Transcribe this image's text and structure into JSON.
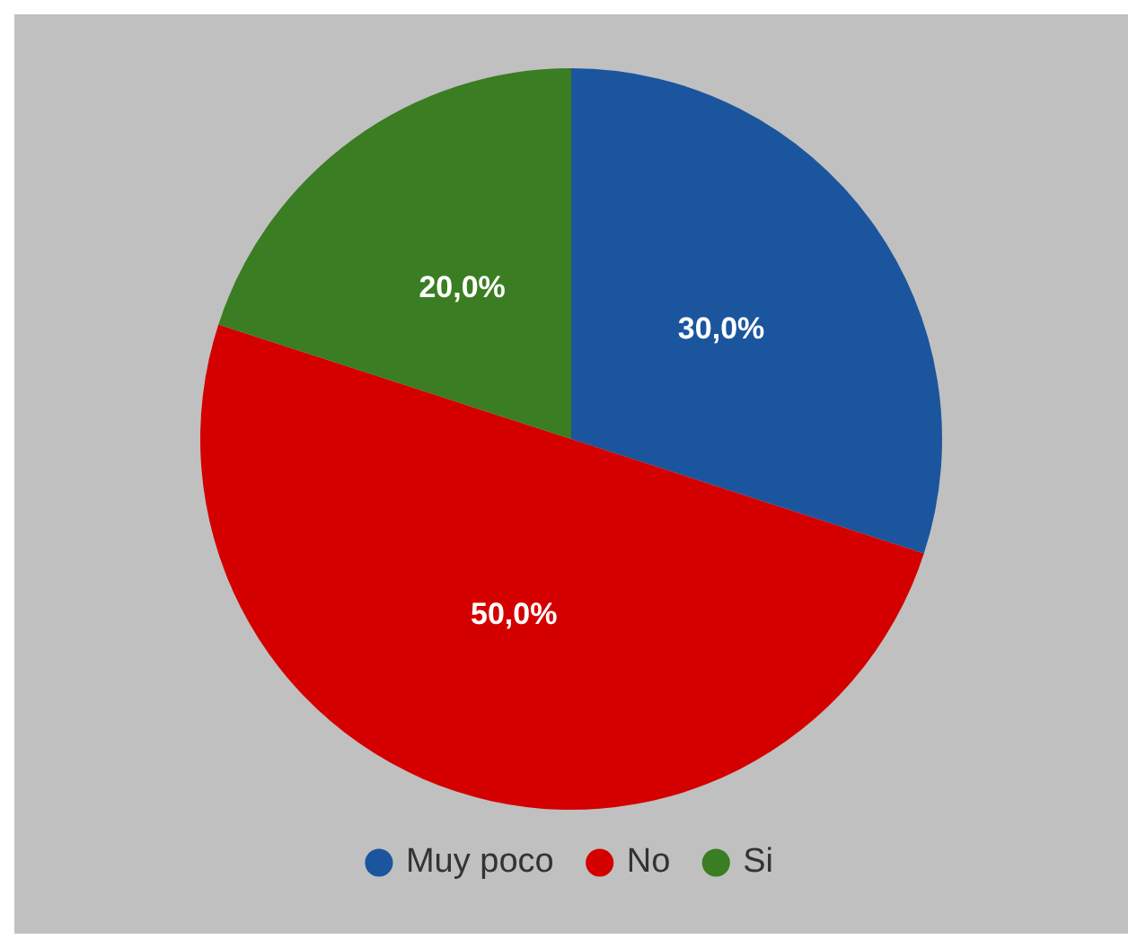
{
  "chart_data": {
    "type": "pie",
    "categories": [
      "Muy poco",
      "No",
      "Si"
    ],
    "values": [
      30,
      50,
      20
    ],
    "colors": [
      "#1b559e",
      "#d40000",
      "#3a7d22"
    ],
    "value_labels": [
      "30,0%",
      "50,0%",
      "20,0%"
    ],
    "legend": "bottom"
  }
}
